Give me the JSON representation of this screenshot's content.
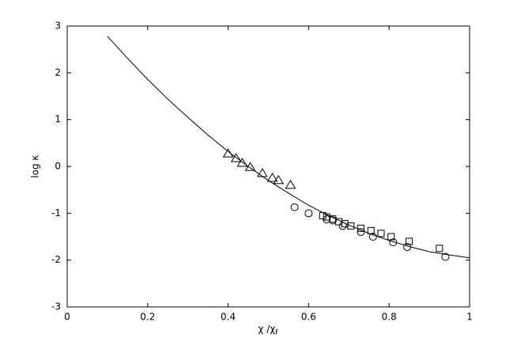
{
  "chart_data": {
    "type": "scatter",
    "xlabel": "χ /χ",
    "xlabel_subscript": "f",
    "ylabel": "log κ",
    "xlim": [
      0,
      1
    ],
    "ylim": [
      -3,
      3
    ],
    "xticks": [
      0,
      0.2,
      0.4,
      0.6,
      0.8,
      1
    ],
    "yticks": [
      -3,
      -2,
      -1,
      0,
      1,
      2,
      3
    ],
    "series": [
      {
        "marker": "line",
        "color": "#000000",
        "x": [
          0.1,
          0.15,
          0.2,
          0.25,
          0.3,
          0.35,
          0.4,
          0.45,
          0.5,
          0.55,
          0.6,
          0.65,
          0.7,
          0.75,
          0.8,
          0.85,
          0.9,
          0.95,
          1.0
        ],
        "values": [
          2.78,
          2.31,
          1.86,
          1.44,
          1.05,
          0.67,
          0.32,
          0.0,
          -0.3,
          -0.57,
          -0.83,
          -1.05,
          -1.25,
          -1.43,
          -1.58,
          -1.71,
          -1.82,
          -1.89,
          -1.95
        ]
      },
      {
        "marker": "triangle",
        "color": "#000000",
        "x": [
          0.4,
          0.42,
          0.435,
          0.455,
          0.485,
          0.51,
          0.525,
          0.555
        ],
        "values": [
          0.27,
          0.17,
          0.07,
          -0.02,
          -0.15,
          -0.25,
          -0.3,
          -0.4
        ]
      },
      {
        "marker": "circle",
        "color": "#000000",
        "x": [
          0.565,
          0.6,
          0.645,
          0.66,
          0.685,
          0.73,
          0.76,
          0.81,
          0.845,
          0.94
        ],
        "values": [
          -0.87,
          -1.0,
          -1.13,
          -1.15,
          -1.27,
          -1.4,
          -1.5,
          -1.62,
          -1.72,
          -1.93
        ]
      },
      {
        "marker": "square",
        "color": "#000000",
        "x": [
          0.635,
          0.645,
          0.66,
          0.675,
          0.69,
          0.705,
          0.73,
          0.755,
          0.78,
          0.805,
          0.85,
          0.925
        ],
        "values": [
          -1.05,
          -1.08,
          -1.12,
          -1.18,
          -1.22,
          -1.27,
          -1.32,
          -1.37,
          -1.43,
          -1.5,
          -1.6,
          -1.75
        ]
      }
    ]
  }
}
